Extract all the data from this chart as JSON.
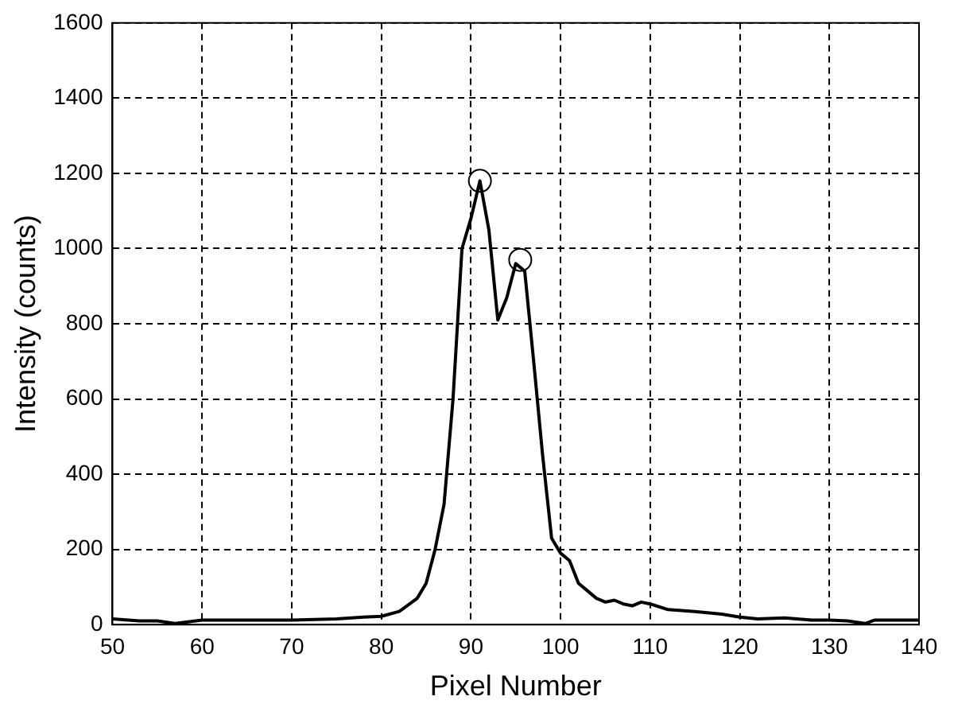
{
  "chart_data": {
    "type": "line",
    "xlabel": "Pixel Number",
    "ylabel": "Intensity (counts)",
    "xlim": [
      50,
      140
    ],
    "xticks": [
      50,
      60,
      70,
      80,
      90,
      100,
      110,
      120,
      130,
      140
    ],
    "ylim": [
      0,
      1600
    ],
    "yticks": [
      0,
      200,
      400,
      600,
      800,
      1000,
      1200,
      1400,
      1600
    ],
    "grid": true,
    "series": [
      {
        "color": "#000000",
        "marker": "none",
        "x": [
          50,
          53,
          55,
          57,
          60,
          65,
          70,
          75,
          78,
          80,
          82,
          84,
          85,
          86,
          87,
          88,
          89,
          90,
          91,
          92,
          93,
          94,
          95,
          96,
          97,
          98,
          99,
          100,
          101,
          102,
          103,
          104,
          105,
          106,
          107,
          108,
          109,
          110,
          112,
          115,
          118,
          120,
          122,
          125,
          128,
          130,
          132,
          134,
          135,
          140
        ],
        "values": [
          15,
          10,
          10,
          3,
          12,
          12,
          12,
          15,
          20,
          22,
          35,
          70,
          110,
          200,
          320,
          600,
          1000,
          1080,
          1180,
          1050,
          810,
          870,
          960,
          940,
          700,
          450,
          230,
          190,
          170,
          110,
          90,
          70,
          60,
          65,
          55,
          50,
          60,
          55,
          40,
          35,
          28,
          20,
          15,
          18,
          12,
          12,
          10,
          3,
          12,
          12
        ]
      },
      {
        "type": "scatter",
        "color": "#000000",
        "marker": "circle",
        "x": [
          91,
          95.5
        ],
        "values": [
          1180,
          970
        ]
      }
    ]
  }
}
